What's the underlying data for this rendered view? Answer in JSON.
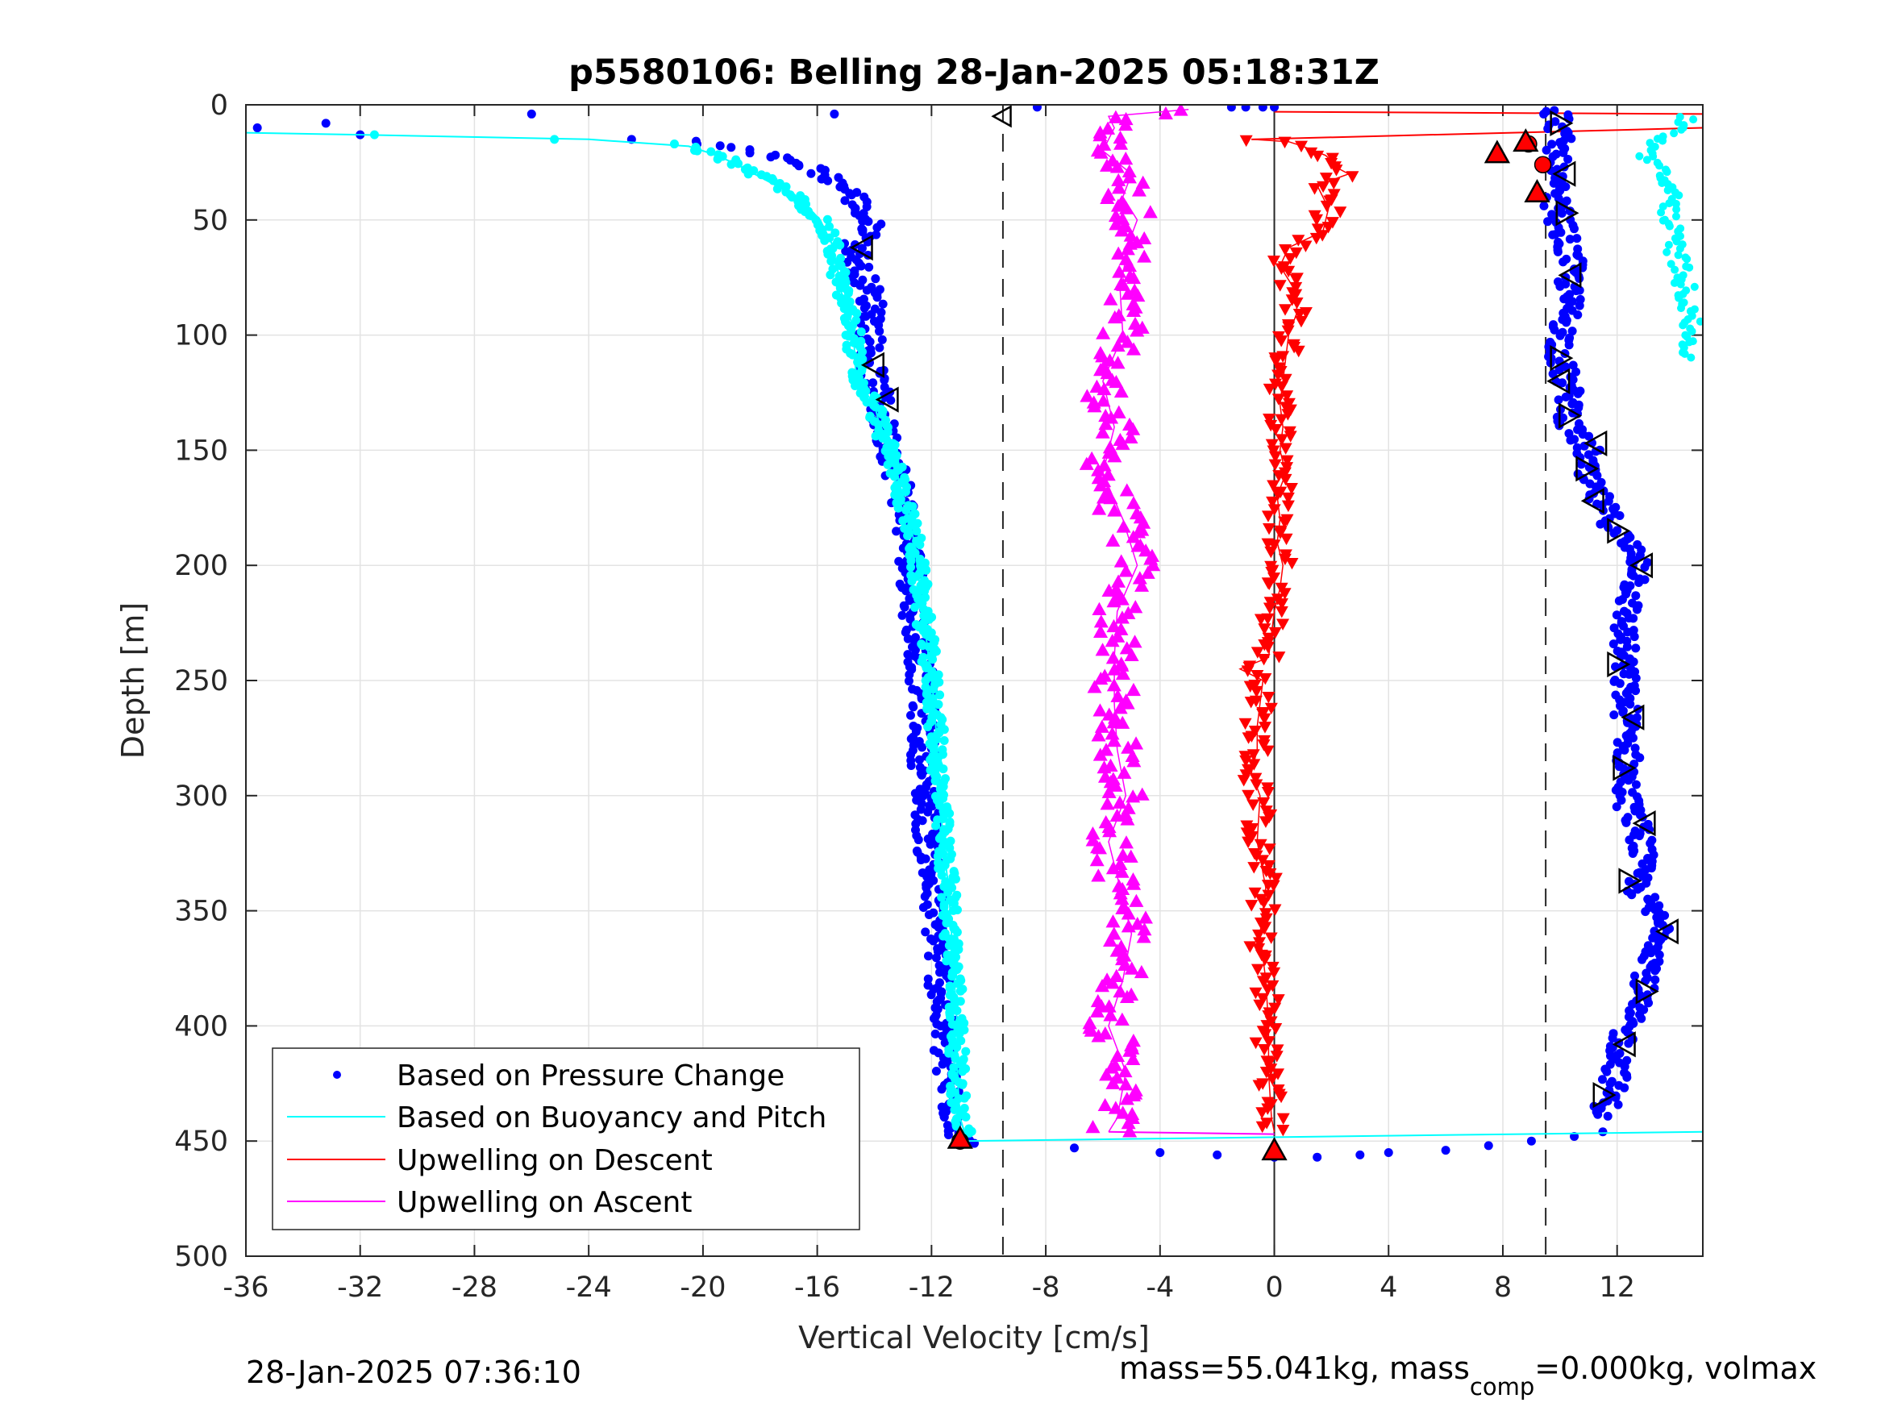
{
  "chart_data": {
    "type": "scatter",
    "title": "p5580106: Belling 28-Jan-2025 05:18:31Z",
    "xlabel": "Vertical Velocity [cm/s]",
    "ylabel": "Depth [m]",
    "xlim": [
      -36,
      15
    ],
    "ylim": [
      0,
      500
    ],
    "y_reversed": true,
    "grid": true,
    "x_ticks": [
      -36,
      -32,
      -28,
      -24,
      -20,
      -16,
      -12,
      -8,
      -4,
      0,
      4,
      8,
      12
    ],
    "x_tick_labels": [
      "-36",
      "-32",
      "-28",
      "-24",
      "-20",
      "-16",
      "-12",
      "-8",
      "-4",
      "0",
      "4",
      "8",
      "12"
    ],
    "y_ticks": [
      0,
      50,
      100,
      150,
      200,
      250,
      300,
      350,
      400,
      450,
      500
    ],
    "y_tick_labels": [
      "0",
      "50",
      "100",
      "150",
      "200",
      "250",
      "300",
      "350",
      "400",
      "450",
      "500"
    ],
    "legend_position": "bottom-left",
    "reference_lines": [
      {
        "x": -9.5,
        "style": "dashed"
      },
      {
        "x": 9.5,
        "style": "dashed"
      },
      {
        "x": 0,
        "style": "solid"
      }
    ],
    "series": [
      {
        "name": "Based on Pressure Change",
        "style": "dots",
        "color": "#0000FF",
        "descent": {
          "depth": [
            10,
            8,
            13,
            4,
            15,
            16,
            18,
            21,
            24,
            28,
            32,
            36,
            40,
            45,
            50,
            55,
            60,
            70,
            80,
            90,
            100,
            110,
            120,
            130,
            140,
            150,
            160,
            170,
            180,
            190,
            200,
            220,
            240,
            260,
            280,
            300,
            320,
            340,
            360,
            380,
            400,
            420,
            440,
            450
          ],
          "velocity": [
            -35.6,
            -33.2,
            -32.0,
            -26.0,
            -22.5,
            -20.5,
            -19.0,
            -18.0,
            -17.0,
            -16.0,
            -15.5,
            -15.0,
            -14.7,
            -14.5,
            -14.3,
            -14.0,
            -14.6,
            -14.6,
            -14.2,
            -14.0,
            -14.1,
            -14.2,
            -14.0,
            -13.8,
            -13.7,
            -13.4,
            -13.2,
            -13.0,
            -12.9,
            -12.8,
            -12.7,
            -12.6,
            -12.4,
            -12.3,
            -12.3,
            -12.2,
            -12.1,
            -12.0,
            -11.8,
            -11.7,
            -11.6,
            -11.5,
            -11.2,
            -10.9
          ]
        },
        "bottom": {
          "depth": [
            451,
            453,
            455,
            456,
            457,
            457,
            456,
            455,
            454,
            452,
            450,
            448,
            446
          ],
          "velocity": [
            -10.5,
            -7.0,
            -4.0,
            -2.0,
            0.0,
            1.5,
            3.0,
            4.0,
            6.0,
            7.5,
            9.0,
            10.5,
            11.5
          ]
        },
        "ascent": {
          "depth": [
            440,
            420,
            400,
            380,
            360,
            340,
            320,
            300,
            280,
            260,
            240,
            220,
            200,
            185,
            170,
            160,
            150,
            140,
            130,
            120,
            110,
            100,
            90,
            80,
            70,
            60,
            50,
            40,
            30,
            20,
            10,
            5,
            2
          ],
          "velocity": [
            11.5,
            12.0,
            12.3,
            13.0,
            13.7,
            12.7,
            12.9,
            12.3,
            12.4,
            12.3,
            12.2,
            12.3,
            12.9,
            12.0,
            11.3,
            10.8,
            11.0,
            10.3,
            10.4,
            10.2,
            10.0,
            10.1,
            10.3,
            10.3,
            10.4,
            10.2,
            10.0,
            9.8,
            9.7,
            9.9,
            10.0,
            10.0,
            9.5
          ]
        },
        "surface": {
          "depth": [
            4,
            1,
            1,
            1,
            1,
            1
          ],
          "velocity": [
            -15.4,
            -8.3,
            -1.5,
            -1.0,
            -0.4,
            0.0
          ]
        }
      },
      {
        "name": "Based on Buoyancy and Pitch",
        "style": "line+dots",
        "color": "#00FFFF",
        "descent": {
          "depth": [
            12,
            13,
            15,
            18,
            22,
            26,
            30,
            34,
            38,
            42,
            46,
            50,
            55,
            60,
            65,
            70,
            80,
            90,
            100,
            110,
            120,
            130,
            140,
            150,
            160,
            170,
            180,
            190,
            200,
            220,
            240,
            260,
            280,
            300,
            320,
            340,
            360,
            380,
            400,
            420,
            440,
            448
          ],
          "velocity": [
            -36.5,
            -32.0,
            -24.0,
            -20.5,
            -19.5,
            -18.8,
            -18.2,
            -17.6,
            -17.0,
            -16.6,
            -16.2,
            -15.9,
            -15.7,
            -15.5,
            -15.4,
            -15.3,
            -15.2,
            -14.9,
            -14.7,
            -14.7,
            -14.6,
            -14.0,
            -13.8,
            -13.5,
            -13.2,
            -13.0,
            -12.8,
            -12.6,
            -12.5,
            -12.3,
            -12.1,
            -11.9,
            -11.8,
            -11.7,
            -11.6,
            -11.4,
            -11.3,
            -11.2,
            -11.1,
            -11.1,
            -11.0,
            -10.8
          ]
        },
        "bottom_line": {
          "depth": [
            450,
            446
          ],
          "velocity": [
            -11.0,
            15.0
          ]
        },
        "ascent": {
          "depth": [
            5,
            6,
            20,
            30,
            40,
            50,
            60,
            70,
            80,
            90,
            100,
            110
          ],
          "velocity": [
            14.0,
            14.6,
            13.0,
            13.5,
            14.0,
            13.8,
            14.0,
            14.2,
            14.4,
            14.6,
            14.5,
            14.6
          ]
        }
      },
      {
        "name": "Upwelling on Descent",
        "style": "line+down-triangles",
        "color": "#FF0000",
        "depth": [
          3,
          10,
          15,
          16,
          18,
          22,
          28,
          30,
          35,
          45,
          55,
          62,
          70,
          80,
          90,
          100,
          110,
          120,
          130,
          140,
          150,
          160,
          170,
          180,
          190,
          200,
          210,
          220,
          230,
          240,
          245,
          250,
          260,
          270,
          280,
          290,
          300,
          320,
          340,
          360,
          380,
          400,
          420,
          440,
          446
        ],
        "velocity": [
          0.0,
          15.0,
          -0.8,
          0.5,
          1.0,
          1.8,
          2.3,
          2.6,
          1.5,
          1.9,
          1.7,
          0.5,
          0.2,
          0.7,
          0.8,
          0.5,
          0.4,
          0.3,
          0.2,
          0.3,
          0.2,
          0.4,
          0.1,
          0.2,
          0.1,
          0.3,
          0.2,
          0.0,
          -0.1,
          -0.2,
          -1.2,
          -0.4,
          -0.5,
          -0.6,
          -0.6,
          -0.8,
          -0.5,
          -0.6,
          -0.3,
          -0.5,
          -0.3,
          -0.2,
          -0.2,
          -0.1,
          0.0
        ]
      },
      {
        "name": "Upwelling on Ascent",
        "style": "line+up-triangles",
        "color": "#FF00FF",
        "depth": [
          446,
          440,
          420,
          400,
          380,
          360,
          340,
          320,
          300,
          280,
          260,
          240,
          220,
          200,
          180,
          160,
          140,
          120,
          100,
          80,
          60,
          50,
          40,
          30,
          20,
          10,
          5,
          2
        ],
        "velocity": [
          -5.8,
          -5.5,
          -5.2,
          -5.8,
          -5.3,
          -5.0,
          -5.4,
          -5.8,
          -5.2,
          -5.5,
          -5.6,
          -5.6,
          -5.5,
          -4.8,
          -5.3,
          -6.0,
          -5.6,
          -6.0,
          -5.3,
          -5.4,
          -5.1,
          -4.8,
          -5.3,
          -5.0,
          -6.0,
          -5.6,
          -5.8,
          -3.0
        ]
      }
    ],
    "markers": {
      "open_triangles_left": [
        {
          "depth": 5,
          "velocity": -9.5
        }
      ],
      "open_triangles_descent": [
        {
          "depth": 62,
          "velocity": -14.4
        },
        {
          "depth": 113,
          "velocity": -14.0
        },
        {
          "depth": 128,
          "velocity": -13.5
        }
      ],
      "open_triangles_ascent": [
        {
          "depth": 8,
          "velocity": 10.0
        },
        {
          "depth": 30,
          "velocity": 10.2
        },
        {
          "depth": 47,
          "velocity": 10.2
        },
        {
          "depth": 74,
          "velocity": 10.4
        },
        {
          "depth": 110,
          "velocity": 10.0
        },
        {
          "depth": 120,
          "velocity": 10.0
        },
        {
          "depth": 135,
          "velocity": 10.3
        },
        {
          "depth": 147,
          "velocity": 11.3
        },
        {
          "depth": 158,
          "velocity": 10.9
        },
        {
          "depth": 172,
          "velocity": 11.2
        },
        {
          "depth": 185,
          "velocity": 12.0
        },
        {
          "depth": 200,
          "velocity": 12.9
        },
        {
          "depth": 243,
          "velocity": 12.0
        },
        {
          "depth": 266,
          "velocity": 12.6
        },
        {
          "depth": 288,
          "velocity": 12.2
        },
        {
          "depth": 312,
          "velocity": 13.0
        },
        {
          "depth": 337,
          "velocity": 12.4
        },
        {
          "depth": 359,
          "velocity": 13.8
        },
        {
          "depth": 385,
          "velocity": 13.0
        },
        {
          "depth": 408,
          "velocity": 12.3
        },
        {
          "depth": 430,
          "velocity": 11.5
        }
      ],
      "red_filled_triangles": [
        {
          "depth": 21,
          "velocity": 7.8
        },
        {
          "depth": 16,
          "velocity": 8.8
        },
        {
          "depth": 38,
          "velocity": 9.2
        },
        {
          "depth": 449,
          "velocity": -11.0
        },
        {
          "depth": 454,
          "velocity": 0.0
        }
      ],
      "red_circles": [
        {
          "depth": 17,
          "velocity": 8.9
        },
        {
          "depth": 26,
          "velocity": 9.4
        },
        {
          "depth": 450,
          "velocity": -11.0
        }
      ]
    }
  },
  "footer": {
    "timestamp": "28-Jan-2025 07:36:10",
    "mass_text": "mass=55.041kg, mass",
    "mass_sub": "comp",
    "mass_rest": "=0.000kg, volmax"
  }
}
